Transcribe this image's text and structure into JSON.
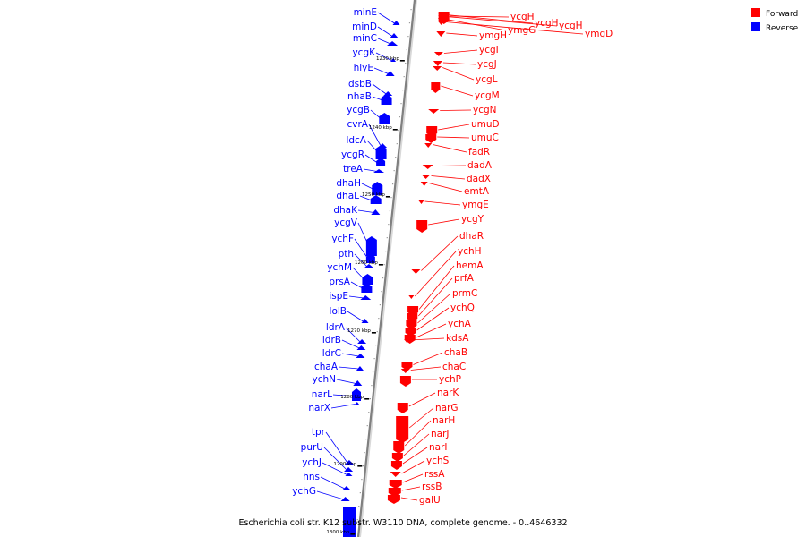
{
  "caption": "Escherichia coli str. K12 substr. W3110 DNA, complete genome. - 0..4646332",
  "legend": [
    {
      "label": "Forward",
      "color": "#ff0000"
    },
    {
      "label": "Reverse",
      "color": "#0000ff"
    }
  ],
  "colors": {
    "forward": "#ff0000",
    "reverse": "#0000ff",
    "backbone": "#808080"
  },
  "bp_markers": [
    "1230 kbp",
    "1240 kbp",
    "1250 kbp",
    "1260 kbp",
    "1270 kbp",
    "1280 kbp",
    "1290 kbp",
    "1300 kbp"
  ],
  "reverse_genes": [
    "minE",
    "minD",
    "minC",
    "ycgK",
    "hlyE",
    "dsbB",
    "nhaB",
    "ycgB",
    "cvrA",
    "ldcA",
    "ycgR",
    "treA",
    "dhaH",
    "dhaL",
    "dhaK",
    "ycgV",
    "ychF",
    "pth",
    "ychM",
    "prsA",
    "ispE",
    "lolB",
    "ldrA",
    "ldrB",
    "ldrC",
    "chaA",
    "ychN",
    "narL",
    "narX",
    "tpr",
    "purU",
    "ychJ",
    "hns",
    "ychG"
  ],
  "forward_genes": [
    "ycgH",
    "ycgH",
    "ycgH",
    "ymgG",
    "ymgD",
    "ymgH",
    "ycgI",
    "ycgJ",
    "ycgL",
    "ycgM",
    "ycgN",
    "umuD",
    "umuC",
    "fadR",
    "dadA",
    "dadX",
    "emtA",
    "ymgE",
    "ycgY",
    "dhaR",
    "ychH",
    "hemA",
    "prfA",
    "prmC",
    "ychQ",
    "ychA",
    "kdsA",
    "chaB",
    "chaC",
    "ychP",
    "narK",
    "narG",
    "narH",
    "narJ",
    "narI",
    "ychS",
    "rssA",
    "rssB",
    "galU"
  ]
}
